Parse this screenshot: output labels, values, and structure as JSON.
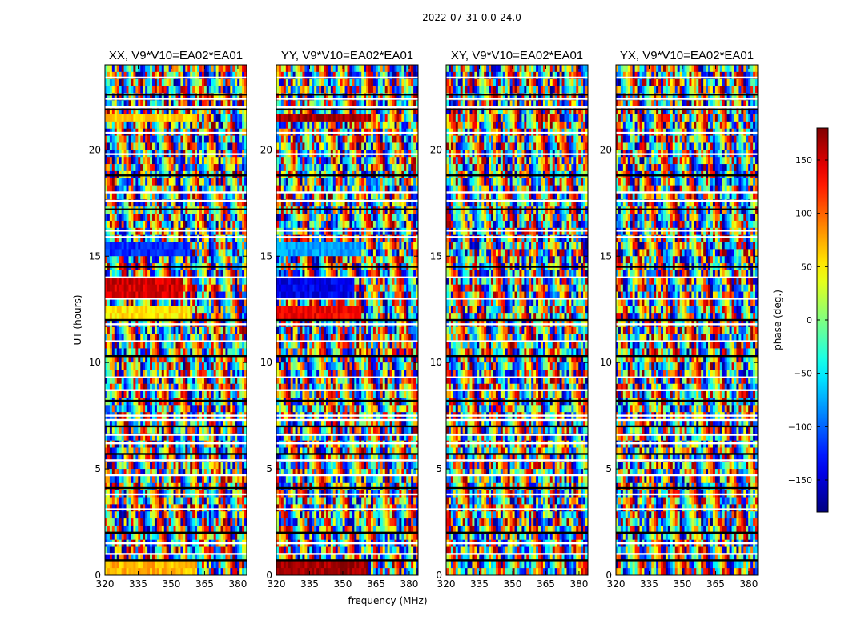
{
  "chart_data": {
    "type": "heatmap",
    "suptitle": "2022-07-31 0.0-24.0",
    "xlabel": "frequency (MHz)",
    "ylabel": "UT (hours)",
    "xlim": [
      320,
      384
    ],
    "ylim": [
      0,
      24
    ],
    "xticks": [
      320,
      335,
      350,
      365,
      380
    ],
    "yticks": [
      0,
      5,
      10,
      15,
      20
    ],
    "panels": [
      {
        "title": "XX, V9*V10=EA02*EA01",
        "pol": "XX",
        "coherent_bands": [
          {
            "t0": 21.2,
            "t1": 21.7,
            "f_split": 362,
            "phase": 60
          },
          {
            "t0": 15.0,
            "t1": 15.8,
            "f_split": 358,
            "phase": -120
          },
          {
            "t0": 13.1,
            "t1": 13.9,
            "f_split": 355,
            "phase": 150
          },
          {
            "t0": 12.1,
            "t1": 12.8,
            "f_split": 358,
            "phase": 55
          },
          {
            "t0": 0.1,
            "t1": 0.6,
            "f_split": 362,
            "phase": 70
          }
        ]
      },
      {
        "title": "YY, V9*V10=EA02*EA01",
        "pol": "YY",
        "coherent_bands": [
          {
            "t0": 21.2,
            "t1": 21.7,
            "f_split": 362,
            "phase": 165
          },
          {
            "t0": 15.0,
            "t1": 15.8,
            "f_split": 358,
            "phase": -80
          },
          {
            "t0": 13.1,
            "t1": 13.9,
            "f_split": 355,
            "phase": -140
          },
          {
            "t0": 12.1,
            "t1": 12.8,
            "f_split": 358,
            "phase": 140
          },
          {
            "t0": 0.1,
            "t1": 0.6,
            "f_split": 362,
            "phase": 170
          }
        ]
      },
      {
        "title": "XY, V9*V10=EA02*EA01",
        "pol": "XY",
        "coherent_bands": []
      },
      {
        "title": "YX, V9*V10=EA02*EA01",
        "pol": "YX",
        "coherent_bands": []
      }
    ],
    "flagged_rows_ut": [
      0.7,
      1.0,
      1.5,
      2.0,
      3.1,
      3.8,
      4.1,
      4.7,
      5.4,
      5.7,
      6.2,
      6.6,
      7.0,
      7.3,
      7.5,
      8.2,
      8.7,
      9.3,
      10.3,
      11.0,
      11.8,
      12.0,
      13.0,
      14.0,
      14.5,
      15.9,
      16.2,
      17.2,
      17.6,
      18.0,
      18.8,
      19.8,
      20.8,
      21.9,
      22.0,
      22.4,
      22.6,
      23.4
    ],
    "colorbar": {
      "label": "phase (deg.)",
      "range": [
        -180,
        180
      ],
      "ticks": [
        -150,
        -100,
        -50,
        0,
        50,
        100,
        150
      ],
      "tick_labels": [
        "−150",
        "−100",
        "−50",
        "0",
        "50",
        "100",
        "150"
      ],
      "colormap": "jet"
    }
  }
}
